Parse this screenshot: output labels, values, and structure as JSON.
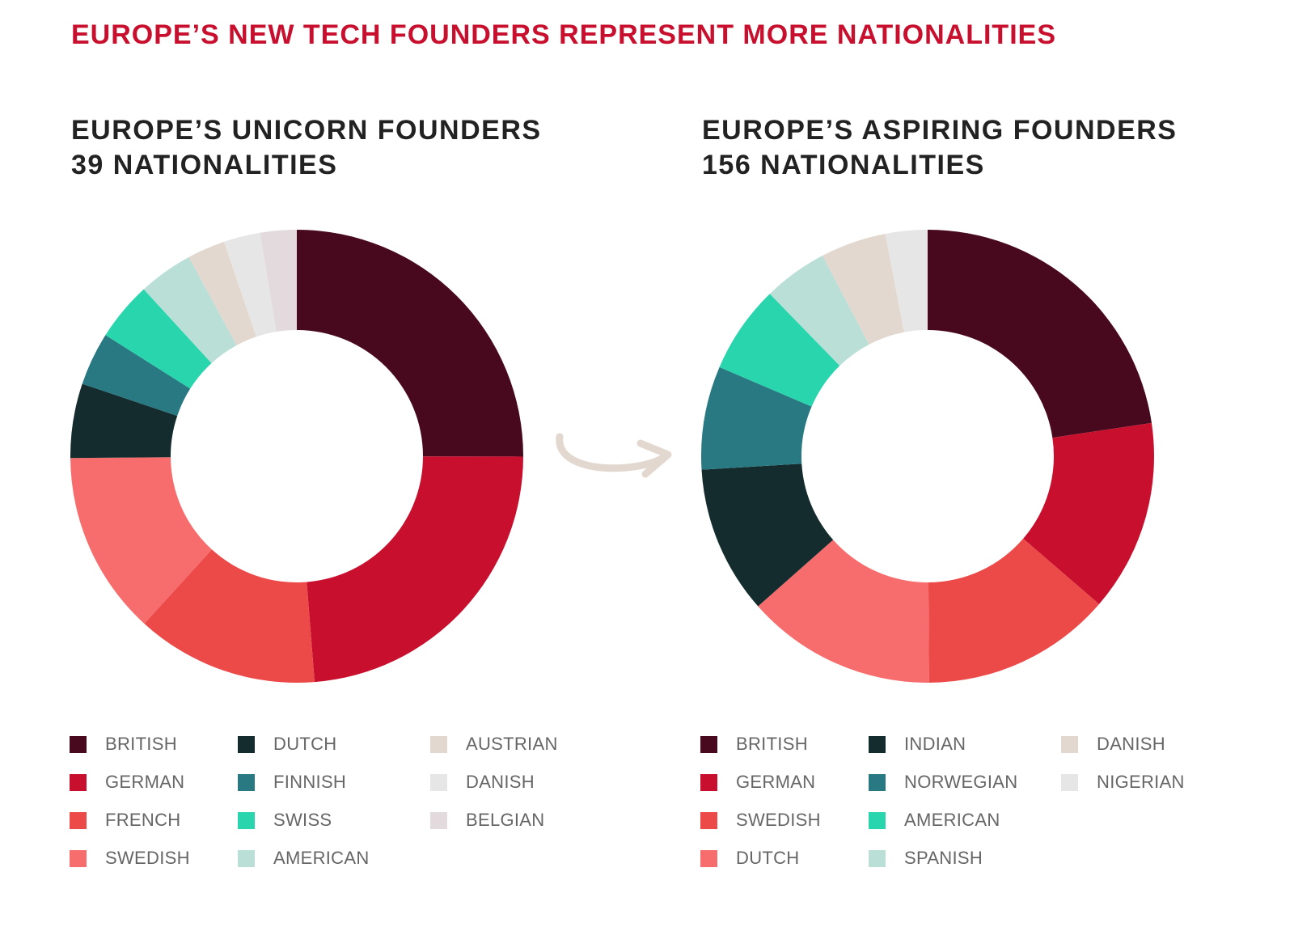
{
  "title": "EUROPE’S NEW TECH FOUNDERS REPRESENT MORE NATIONALITIES",
  "colors": {
    "title": "#c8102e",
    "subtitle": "#222222",
    "arrow": "#e3d8cf"
  },
  "left": {
    "subtitle_line1": "EUROPE’S UNICORN FOUNDERS",
    "subtitle_line2": "39 NATIONALITIES"
  },
  "right": {
    "subtitle_line1": "EUROPE’S ASPIRING FOUNDERS",
    "subtitle_line2": "156 NATIONALITIES"
  },
  "arrow_icon": "curved-arrow-right",
  "chart_data": [
    {
      "type": "pie",
      "subtype": "donut",
      "title": "EUROPE’S UNICORN FOUNDERS 39 NATIONALITIES",
      "start_angle_deg": 0,
      "direction": "clockwise",
      "legend_position": "bottom",
      "categories": [
        "BRITISH",
        "GERMAN",
        "FRENCH",
        "SWEDISH",
        "DUTCH",
        "FINNISH",
        "SWISS",
        "AMERICAN",
        "AUSTRIAN",
        "DANISH",
        "BELGIAN"
      ],
      "values": [
        25.0,
        23.7,
        13.0,
        13.1,
        5.3,
        3.8,
        4.2,
        3.9,
        2.7,
        2.6,
        2.6
      ],
      "unit": "% (estimated)",
      "colors": [
        "#48081e",
        "#c8102e",
        "#ec4a48",
        "#f76c6c",
        "#152c2f",
        "#287982",
        "#29d5ad",
        "#b9dfd7",
        "#e3d8cf",
        "#e6e6e6",
        "#e3dadd"
      ],
      "legend_columns": [
        [
          "BRITISH",
          "GERMAN",
          "FRENCH",
          "SWEDISH"
        ],
        [
          "DUTCH",
          "FINNISH",
          "SWISS",
          "AMERICAN"
        ],
        [
          "AUSTRIAN",
          "DANISH",
          "BELGIAN"
        ]
      ]
    },
    {
      "type": "pie",
      "subtype": "donut",
      "title": "EUROPE’S ASPIRING FOUNDERS 156 NATIONALITIES",
      "start_angle_deg": 0,
      "direction": "clockwise",
      "legend_position": "bottom",
      "categories": [
        "BRITISH",
        "GERMAN",
        "SWEDISH",
        "DUTCH",
        "INDIAN",
        "NORWEGIAN",
        "AMERICAN",
        "SPANISH",
        "DANISH",
        "NIGERIAN"
      ],
      "values": [
        22.7,
        13.7,
        13.6,
        13.6,
        10.6,
        7.4,
        6.3,
        4.6,
        4.7,
        3.0
      ],
      "unit": "% (estimated)",
      "colors": [
        "#48081e",
        "#c8102e",
        "#ec4a48",
        "#f76c6c",
        "#152c2f",
        "#287982",
        "#29d5ad",
        "#b9dfd7",
        "#e3d8cf",
        "#e6e6e6"
      ],
      "legend_columns": [
        [
          "BRITISH",
          "GERMAN",
          "SWEDISH",
          "DUTCH"
        ],
        [
          "INDIAN",
          "NORWEGIAN",
          "AMERICAN",
          "SPANISH"
        ],
        [
          "DANISH",
          "NIGERIAN"
        ]
      ]
    }
  ]
}
